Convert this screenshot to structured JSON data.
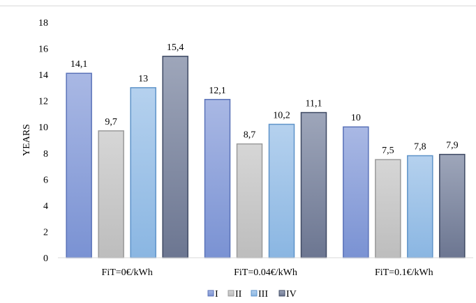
{
  "chart_data": {
    "type": "bar",
    "title": "",
    "xlabel": "",
    "ylabel": "YEARS",
    "ylim": [
      0,
      18
    ],
    "yticks": [
      0,
      2,
      4,
      6,
      8,
      10,
      12,
      14,
      16,
      18
    ],
    "grid": false,
    "legend_position": "bottom",
    "categories": [
      "FiT=0€/kWh",
      "FiT=0.04€/kWh",
      "FiT=0.1€/kWh"
    ],
    "series": [
      {
        "name": "I",
        "values": [
          14.1,
          12.1,
          10.0
        ],
        "labels": [
          "14,1",
          "12,1",
          "10"
        ],
        "color_top": "#a9b8e4",
        "color_bottom": "#7a92d3",
        "stroke": "#5a72b8"
      },
      {
        "name": "II",
        "values": [
          9.7,
          8.7,
          7.5
        ],
        "labels": [
          "9,7",
          "8,7",
          "7,5"
        ],
        "color_top": "#d6d6d6",
        "color_bottom": "#bdbdbd",
        "stroke": "#9a9a9a"
      },
      {
        "name": "III",
        "values": [
          13.0,
          10.2,
          7.8
        ],
        "labels": [
          "13",
          "10,2",
          "7,8"
        ],
        "color_top": "#b5d1ee",
        "color_bottom": "#8ab6e2",
        "stroke": "#5e93c9"
      },
      {
        "name": "IV",
        "values": [
          15.4,
          11.1,
          7.9
        ],
        "labels": [
          "15,4",
          "11,1",
          "7,9"
        ],
        "color_top": "#9ea6ba",
        "color_bottom": "#6c7691",
        "stroke": "#3e4963"
      }
    ]
  }
}
